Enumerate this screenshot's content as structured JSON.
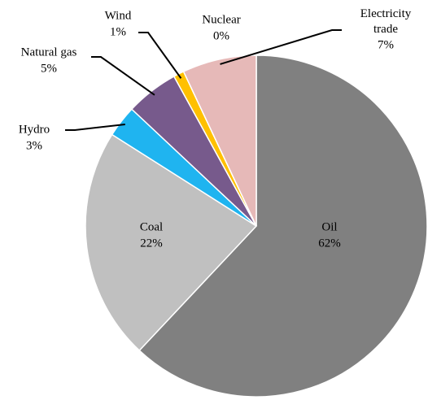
{
  "chart_data": {
    "type": "pie",
    "categories": [
      "Oil",
      "Coal",
      "Hydro",
      "Natural gas",
      "Wind",
      "Nuclear",
      "Electricity trade"
    ],
    "values": [
      62,
      22,
      3,
      5,
      1,
      0,
      7
    ],
    "value_labels": [
      "62%",
      "22%",
      "3%",
      "5%",
      "1%",
      "0%",
      "7%"
    ],
    "colors": [
      "#808080",
      "#c0c0c0",
      "#1fb4f0",
      "#775a8c",
      "#ffc000",
      "#d9d9d9",
      "#e6b9b8"
    ]
  }
}
